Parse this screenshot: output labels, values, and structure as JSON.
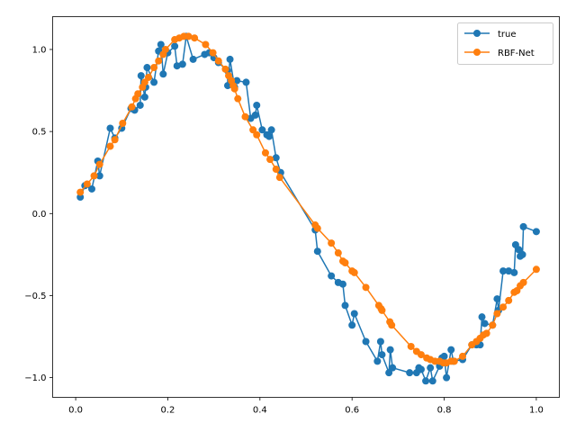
{
  "chart_data": {
    "type": "line",
    "title": "",
    "xlabel": "",
    "ylabel": "",
    "xlim": [
      -0.05,
      1.05
    ],
    "ylim": [
      -1.12,
      1.2
    ],
    "xticks": [
      0.0,
      0.2,
      0.4,
      0.6,
      0.8,
      1.0
    ],
    "xtick_labels": [
      "0.0",
      "0.2",
      "0.4",
      "0.6",
      "0.8",
      "1.0"
    ],
    "yticks": [
      -1.0,
      -0.5,
      0.0,
      0.5,
      1.0
    ],
    "ytick_labels": [
      "−1.0",
      "−0.5",
      "0.0",
      "0.5",
      "1.0"
    ],
    "grid": false,
    "legend_position": "top-right",
    "series": [
      {
        "name": "true",
        "color": "#1f77b4",
        "marker": "circle",
        "points": [
          [
            0.01,
            0.1
          ],
          [
            0.02,
            0.17
          ],
          [
            0.035,
            0.15
          ],
          [
            0.048,
            0.32
          ],
          [
            0.052,
            0.23
          ],
          [
            0.075,
            0.52
          ],
          [
            0.085,
            0.46
          ],
          [
            0.1,
            0.52
          ],
          [
            0.12,
            0.64
          ],
          [
            0.128,
            0.63
          ],
          [
            0.14,
            0.66
          ],
          [
            0.142,
            0.84
          ],
          [
            0.15,
            0.71
          ],
          [
            0.152,
            0.77
          ],
          [
            0.155,
            0.89
          ],
          [
            0.17,
            0.8
          ],
          [
            0.18,
            0.99
          ],
          [
            0.185,
            1.03
          ],
          [
            0.19,
            0.85
          ],
          [
            0.2,
            0.98
          ],
          [
            0.215,
            1.02
          ],
          [
            0.22,
            0.9
          ],
          [
            0.232,
            0.91
          ],
          [
            0.24,
            1.08
          ],
          [
            0.255,
            0.94
          ],
          [
            0.28,
            0.97
          ],
          [
            0.29,
            0.98
          ],
          [
            0.3,
            0.95
          ],
          [
            0.31,
            0.92
          ],
          [
            0.33,
            0.87
          ],
          [
            0.33,
            0.78
          ],
          [
            0.335,
            0.94
          ],
          [
            0.345,
            0.77
          ],
          [
            0.35,
            0.81
          ],
          [
            0.37,
            0.8
          ],
          [
            0.38,
            0.58
          ],
          [
            0.39,
            0.6
          ],
          [
            0.393,
            0.66
          ],
          [
            0.405,
            0.51
          ],
          [
            0.415,
            0.48
          ],
          [
            0.42,
            0.47
          ],
          [
            0.425,
            0.51
          ],
          [
            0.435,
            0.34
          ],
          [
            0.445,
            0.25
          ],
          [
            0.52,
            -0.1
          ],
          [
            0.525,
            -0.23
          ],
          [
            0.555,
            -0.38
          ],
          [
            0.57,
            -0.42
          ],
          [
            0.58,
            -0.43
          ],
          [
            0.585,
            -0.56
          ],
          [
            0.6,
            -0.68
          ],
          [
            0.605,
            -0.61
          ],
          [
            0.63,
            -0.78
          ],
          [
            0.655,
            -0.9
          ],
          [
            0.662,
            -0.78
          ],
          [
            0.665,
            -0.86
          ],
          [
            0.68,
            -0.97
          ],
          [
            0.683,
            -0.83
          ],
          [
            0.688,
            -0.94
          ],
          [
            0.725,
            -0.97
          ],
          [
            0.74,
            -0.97
          ],
          [
            0.745,
            -0.94
          ],
          [
            0.75,
            -0.95
          ],
          [
            0.76,
            -1.02
          ],
          [
            0.77,
            -0.94
          ],
          [
            0.775,
            -1.02
          ],
          [
            0.79,
            -0.93
          ],
          [
            0.795,
            -0.88
          ],
          [
            0.8,
            -0.87
          ],
          [
            0.805,
            -1.0
          ],
          [
            0.815,
            -0.83
          ],
          [
            0.82,
            -0.9
          ],
          [
            0.84,
            -0.89
          ],
          [
            0.86,
            -0.8
          ],
          [
            0.87,
            -0.8
          ],
          [
            0.878,
            -0.8
          ],
          [
            0.882,
            -0.63
          ],
          [
            0.888,
            -0.67
          ],
          [
            0.905,
            -0.68
          ],
          [
            0.915,
            -0.52
          ],
          [
            0.918,
            -0.59
          ],
          [
            0.928,
            -0.35
          ],
          [
            0.94,
            -0.35
          ],
          [
            0.952,
            -0.36
          ],
          [
            0.955,
            -0.19
          ],
          [
            0.962,
            -0.22
          ],
          [
            0.965,
            -0.26
          ],
          [
            0.97,
            -0.25
          ],
          [
            0.972,
            -0.08
          ],
          [
            1.0,
            -0.11
          ]
        ]
      },
      {
        "name": "RBF-Net",
        "color": "#ff7f0e",
        "marker": "circle",
        "points": [
          [
            0.01,
            0.13
          ],
          [
            0.025,
            0.18
          ],
          [
            0.04,
            0.23
          ],
          [
            0.052,
            0.3
          ],
          [
            0.075,
            0.41
          ],
          [
            0.085,
            0.45
          ],
          [
            0.102,
            0.55
          ],
          [
            0.122,
            0.65
          ],
          [
            0.13,
            0.7
          ],
          [
            0.135,
            0.73
          ],
          [
            0.145,
            0.77
          ],
          [
            0.15,
            0.8
          ],
          [
            0.158,
            0.83
          ],
          [
            0.17,
            0.89
          ],
          [
            0.18,
            0.93
          ],
          [
            0.19,
            0.97
          ],
          [
            0.195,
            1.0
          ],
          [
            0.215,
            1.06
          ],
          [
            0.225,
            1.07
          ],
          [
            0.235,
            1.08
          ],
          [
            0.245,
            1.08
          ],
          [
            0.258,
            1.07
          ],
          [
            0.282,
            1.03
          ],
          [
            0.298,
            0.98
          ],
          [
            0.31,
            0.93
          ],
          [
            0.325,
            0.88
          ],
          [
            0.332,
            0.84
          ],
          [
            0.338,
            0.81
          ],
          [
            0.342,
            0.78
          ],
          [
            0.345,
            0.76
          ],
          [
            0.352,
            0.7
          ],
          [
            0.368,
            0.59
          ],
          [
            0.385,
            0.51
          ],
          [
            0.393,
            0.48
          ],
          [
            0.412,
            0.37
          ],
          [
            0.422,
            0.33
          ],
          [
            0.435,
            0.27
          ],
          [
            0.443,
            0.22
          ],
          [
            0.52,
            -0.07
          ],
          [
            0.525,
            -0.09
          ],
          [
            0.555,
            -0.18
          ],
          [
            0.57,
            -0.24
          ],
          [
            0.58,
            -0.29
          ],
          [
            0.585,
            -0.3
          ],
          [
            0.6,
            -0.35
          ],
          [
            0.605,
            -0.36
          ],
          [
            0.63,
            -0.45
          ],
          [
            0.658,
            -0.56
          ],
          [
            0.663,
            -0.58
          ],
          [
            0.665,
            -0.59
          ],
          [
            0.682,
            -0.66
          ],
          [
            0.686,
            -0.68
          ],
          [
            0.728,
            -0.81
          ],
          [
            0.74,
            -0.84
          ],
          [
            0.75,
            -0.86
          ],
          [
            0.762,
            -0.88
          ],
          [
            0.77,
            -0.89
          ],
          [
            0.78,
            -0.9
          ],
          [
            0.79,
            -0.9
          ],
          [
            0.798,
            -0.91
          ],
          [
            0.805,
            -0.91
          ],
          [
            0.815,
            -0.9
          ],
          [
            0.822,
            -0.9
          ],
          [
            0.84,
            -0.87
          ],
          [
            0.86,
            -0.8
          ],
          [
            0.87,
            -0.78
          ],
          [
            0.878,
            -0.76
          ],
          [
            0.885,
            -0.74
          ],
          [
            0.892,
            -0.73
          ],
          [
            0.905,
            -0.68
          ],
          [
            0.915,
            -0.61
          ],
          [
            0.928,
            -0.57
          ],
          [
            0.94,
            -0.53
          ],
          [
            0.952,
            -0.48
          ],
          [
            0.958,
            -0.47
          ],
          [
            0.965,
            -0.44
          ],
          [
            0.972,
            -0.42
          ],
          [
            1.0,
            -0.34
          ]
        ]
      }
    ]
  }
}
